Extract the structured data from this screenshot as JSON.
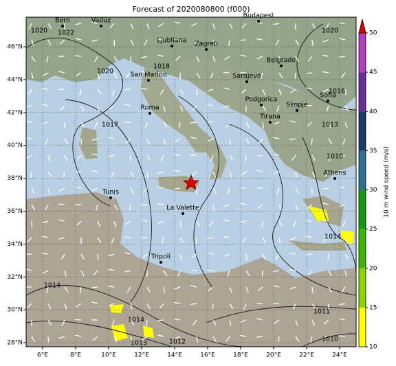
{
  "map": {
    "title": "Forecast of 2020080800 (f000)",
    "xlim": [
      5,
      25
    ],
    "ylim": [
      27.75,
      47.8
    ],
    "xticks": [
      {
        "value": 6,
        "label": "6°E"
      },
      {
        "value": 8,
        "label": "8°E"
      },
      {
        "value": 10,
        "label": "10°E"
      },
      {
        "value": 12,
        "label": "12°E"
      },
      {
        "value": 14,
        "label": "14°E"
      },
      {
        "value": 16,
        "label": "16°E"
      },
      {
        "value": 18,
        "label": "18°E"
      },
      {
        "value": 20,
        "label": "20°E"
      },
      {
        "value": 22,
        "label": "22°E"
      },
      {
        "value": 24,
        "label": "24°E"
      }
    ],
    "yticks": [
      {
        "value": 28,
        "label": "28°N"
      },
      {
        "value": 30,
        "label": "30°N"
      },
      {
        "value": 32,
        "label": "32°N"
      },
      {
        "value": 34,
        "label": "34°N"
      },
      {
        "value": 36,
        "label": "36°N"
      },
      {
        "value": 38,
        "label": "38°N"
      },
      {
        "value": 40,
        "label": "40°N"
      },
      {
        "value": 42,
        "label": "42°N"
      },
      {
        "value": 44,
        "label": "44°N"
      },
      {
        "value": 46,
        "label": "46°N"
      }
    ],
    "grid": true,
    "cities": [
      "Vaduz",
      "Bern",
      "Ljubliana",
      "Zagreb",
      "Budapest",
      "San Marino",
      "Sarajevo",
      "Belgrade",
      "Roma",
      "Podgorica",
      "Skopje",
      "Sofia",
      "Tirana",
      "Athens",
      "Tunis",
      "La Valette",
      "Tripoli"
    ],
    "isobar_labels": [
      "1020",
      "1022",
      "1018",
      "1020",
      "1017",
      "1020",
      "1016",
      "1013",
      "1010",
      "1014",
      "1014",
      "1014",
      "1011",
      "1012",
      "1013",
      "1010"
    ]
  },
  "colorbar": {
    "label": "10 m wind speed (m/s)",
    "lim": [
      10,
      50
    ],
    "ticks": [
      10,
      15,
      20,
      25,
      30,
      35,
      40,
      45,
      50
    ],
    "colors": [
      "#ffff00",
      "#8fd400",
      "#3cb800",
      "#129a12",
      "#2e7090",
      "#1a3a6a",
      "#6a2e9a",
      "#b040c0"
    ],
    "extend_color": "#e00000"
  }
}
